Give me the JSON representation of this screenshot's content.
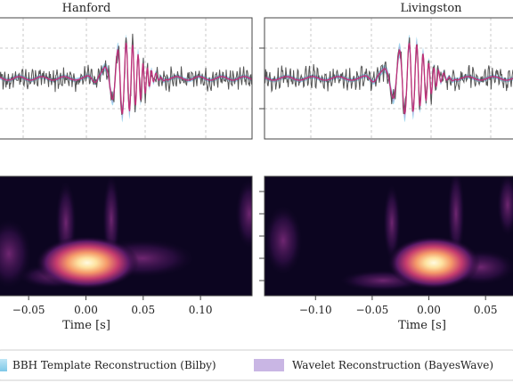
{
  "colors": {
    "background": "#ffffff",
    "data_line": "#555555",
    "bilby_band": "#7ec8e8",
    "bilby_median": "#c0307a",
    "bayeswave_band": "#b79bd9",
    "spectrogram_bg": "#0c0520"
  },
  "chart_data": [
    {
      "type": "line",
      "panel": "Hanford strain",
      "title": "Hanford",
      "xlim": [
        -0.14,
        0.14
      ],
      "ylim": [
        -1.3,
        1.3
      ],
      "grid": true,
      "series": [
        {
          "name": "data",
          "color": "#555555"
        },
        {
          "name": "BBH Template Reconstruction (Bilby)",
          "color": "#7ec8e8"
        },
        {
          "name": "Wavelet Reconstruction (BayesWave)",
          "color": "#b79bd9"
        }
      ]
    },
    {
      "type": "line",
      "panel": "Livingston strain",
      "title": "Livingston",
      "xlim": [
        -0.14,
        0.1
      ],
      "ylim": [
        -1.3,
        1.3
      ],
      "grid": true,
      "series": [
        {
          "name": "data",
          "color": "#555555"
        },
        {
          "name": "BBH Template Reconstruction (Bilby)",
          "color": "#7ec8e8"
        },
        {
          "name": "Wavelet Reconstruction (BayesWave)",
          "color": "#b79bd9"
        }
      ]
    },
    {
      "type": "heatmap",
      "panel": "Hanford spectrogram",
      "xlabel": "Time [s]",
      "xticks": [
        "−0.05",
        "0.00",
        "0.05",
        "0.10"
      ],
      "xtick_values": [
        -0.05,
        0.0,
        0.05,
        0.1
      ],
      "xlim": [
        -0.075,
        0.145
      ],
      "colormap": "magma",
      "peak_time": 0.0
    },
    {
      "type": "heatmap",
      "panel": "Livingston spectrogram",
      "xlabel": "Time [s]",
      "xticks": [
        "−0.10",
        "−0.05",
        "0.00",
        "0.05"
      ],
      "xtick_values": [
        -0.1,
        -0.05,
        0.0,
        0.05
      ],
      "xlim": [
        -0.145,
        0.075
      ],
      "colormap": "magma",
      "peak_time": 0.0
    }
  ],
  "legend": {
    "placement": "bottom",
    "items": [
      {
        "label": "BBH Template Reconstruction (Bilby)",
        "color": "#7ec8e8"
      },
      {
        "label": "Wavelet Reconstruction (BayesWave)",
        "color": "#c9b6e4"
      }
    ]
  }
}
